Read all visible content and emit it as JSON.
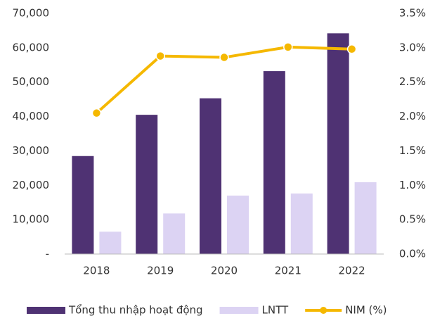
{
  "chart_data": {
    "type": "bar-line",
    "categories": [
      "2018",
      "2019",
      "2020",
      "2021",
      "2022"
    ],
    "series": [
      {
        "name": "Tổng thu nhập hoạt động",
        "color": "#4f3273",
        "values": [
          28500,
          40500,
          45300,
          53200,
          64200
        ]
      },
      {
        "name": "LNTT",
        "color": "#dcd3f3",
        "values": [
          6500,
          11800,
          17000,
          17600,
          20900
        ]
      },
      {
        "name": "NIM (%)",
        "color": "#f5b800",
        "axis": "y2",
        "type": "line",
        "values": [
          2.05,
          2.88,
          2.86,
          3.01,
          2.98
        ]
      }
    ],
    "ylim": [
      0,
      70000
    ],
    "yticks": [
      {
        "value": 0,
        "label": "-"
      },
      {
        "value": 10000,
        "label": "10,000"
      },
      {
        "value": 20000,
        "label": "20,000"
      },
      {
        "value": 30000,
        "label": "30,000"
      },
      {
        "value": 40000,
        "label": "40,000"
      },
      {
        "value": 50000,
        "label": "50,000"
      },
      {
        "value": 60000,
        "label": "60,000"
      },
      {
        "value": 70000,
        "label": "70,000"
      }
    ],
    "y2lim": [
      0,
      3.5
    ],
    "y2ticks": [
      {
        "value": 0,
        "label": "0.0%"
      },
      {
        "value": 0.5,
        "label": "0.5%"
      },
      {
        "value": 1,
        "label": "1.0%"
      },
      {
        "value": 1.5,
        "label": "1.5%"
      },
      {
        "value": 2,
        "label": "2.0%"
      },
      {
        "value": 2.5,
        "label": "2.5%"
      },
      {
        "value": 3,
        "label": "3.0%"
      },
      {
        "value": 3.5,
        "label": "3.5%"
      }
    ],
    "legend": "bottom"
  }
}
